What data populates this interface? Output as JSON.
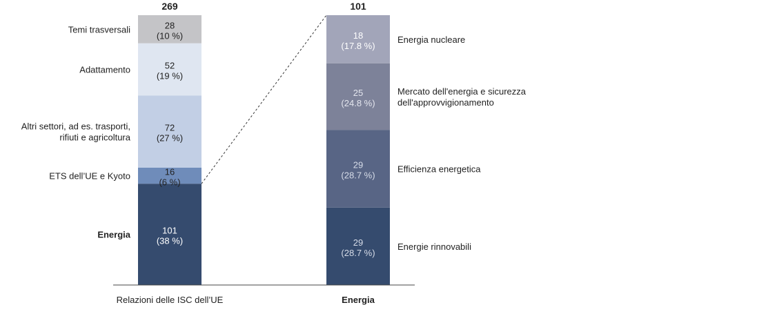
{
  "chart_data": [
    {
      "type": "bar",
      "stacked": true,
      "category": "Relazioni delle ISC dell’UE",
      "total_label": "269",
      "total": 269,
      "ylim": [
        0,
        269
      ],
      "segments": [
        {
          "name": "Energia",
          "value": 101,
          "value_label": "101",
          "pct_label": "(38 %)",
          "color": "#354b6e",
          "text_color": "#ffffff",
          "label_bold": true
        },
        {
          "name": "ETS dell’UE e Kyoto",
          "value": 16,
          "value_label": "16",
          "pct_label": "(6 %)",
          "color": "#6f8cba",
          "text_color": "#222222",
          "label_bold": false
        },
        {
          "name": "Altri settori, ad es. trasporti,\nrifiuti e agricoltura",
          "value": 72,
          "value_label": "72",
          "pct_label": "(27 %)",
          "color": "#c2cfe5",
          "text_color": "#222222",
          "label_bold": false
        },
        {
          "name": "Adattamento",
          "value": 52,
          "value_label": "52",
          "pct_label": "(19 %)",
          "color": "#dfe6f1",
          "text_color": "#222222",
          "label_bold": false
        },
        {
          "name": "Temi trasversali",
          "value": 28,
          "value_label": "28",
          "pct_label": "(10 %)",
          "color": "#c4c4c7",
          "text_color": "#222222",
          "label_bold": false
        }
      ]
    },
    {
      "type": "bar",
      "stacked": true,
      "category": "Energia",
      "total_label": "101",
      "total": 101,
      "ylim": [
        0,
        101
      ],
      "segments": [
        {
          "name": "Energie rinnovabili",
          "value": 29,
          "value_label": "29",
          "pct_label": "(28.7 %)",
          "color": "#354b6e",
          "text_color": "#d6dce8"
        },
        {
          "name": "Efficienza energetica",
          "value": 29,
          "value_label": "29",
          "pct_label": "(28.7 %)",
          "color": "#586585",
          "text_color": "#d6dce8"
        },
        {
          "name": "Mercato dell'energia e sicurezza\ndell'approvvigionamento",
          "value": 25,
          "value_label": "25",
          "pct_label": "(24.8 %)",
          "color": "#7d8299",
          "text_color": "#e4e6ee"
        },
        {
          "name": "Energia nucleare",
          "value": 18,
          "value_label": "18",
          "pct_label": "(17.8 %)",
          "color": "#a2a5b9",
          "text_color": "#ffffff"
        }
      ]
    }
  ]
}
